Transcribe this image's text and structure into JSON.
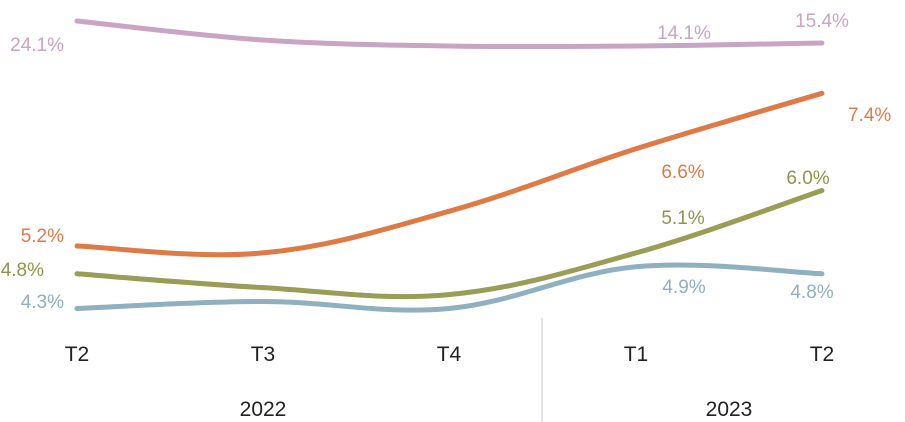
{
  "chart_data": {
    "type": "line",
    "categories": [
      "T2",
      "T3",
      "T4",
      "T1",
      "T2"
    ],
    "year_groups": [
      {
        "label": "2022",
        "span": [
          0,
          2
        ]
      },
      {
        "label": "2023",
        "span": [
          3,
          4
        ]
      }
    ],
    "series": [
      {
        "color": "#c9a4c4",
        "values": [
          24.1,
          null,
          null,
          14.1,
          15.4
        ],
        "labels": [
          "24.1%",
          "",
          "",
          "14.1%",
          "15.4%"
        ],
        "label_color": "#c9a4c4"
      },
      {
        "color": "#de7a46",
        "values": [
          5.2,
          5.1,
          5.7,
          6.6,
          7.4
        ],
        "labels": [
          "5.2%",
          "",
          "",
          "6.6%",
          "7.4%"
        ],
        "label_color": "#de7a46"
      },
      {
        "color": "#999d55",
        "values": [
          4.8,
          4.6,
          4.5,
          5.1,
          6.0
        ],
        "labels": [
          "4.8%",
          "",
          "",
          "5.1%",
          "6.0%"
        ],
        "label_color": "#8f9448"
      },
      {
        "color": "#8fb0be",
        "values": [
          4.3,
          4.4,
          4.3,
          4.9,
          4.8
        ],
        "labels": [
          "4.3%",
          "",
          "",
          "4.9%",
          "4.8%"
        ],
        "label_color": "#8fb0be"
      }
    ],
    "title": "",
    "xlabel": "",
    "ylabel": "",
    "grid": false,
    "legend": "none"
  }
}
